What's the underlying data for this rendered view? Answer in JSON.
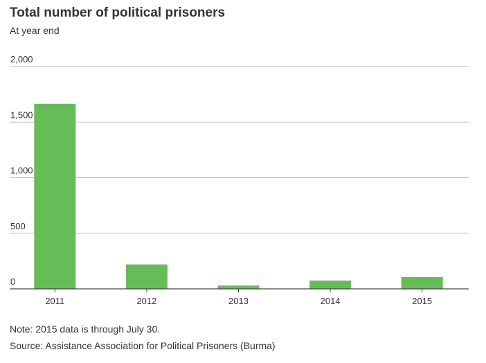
{
  "colors": {
    "bar": "#66bd58",
    "grid": "#bbbbbb",
    "baseline": "#444444",
    "text": "#333333"
  },
  "footer": {
    "note": "Note: 2015 data is through July 30.",
    "source": "Source: Assistance Association for Political Prisoners (Burma)"
  },
  "chart_data": {
    "type": "bar",
    "title": "Total number of political prisoners",
    "subtitle": "At year end",
    "xlabel": "",
    "ylabel": "",
    "categories": [
      "2011",
      "2012",
      "2013",
      "2014",
      "2015"
    ],
    "values": [
      1665,
      220,
      30,
      75,
      107
    ],
    "ylim": [
      0,
      2000
    ],
    "yticks": [
      0,
      500,
      1000,
      1500,
      2000
    ],
    "ytick_labels": [
      "0",
      "500",
      "1,000",
      "1,500",
      "2,000"
    ],
    "grid": true,
    "legend": "none"
  }
}
